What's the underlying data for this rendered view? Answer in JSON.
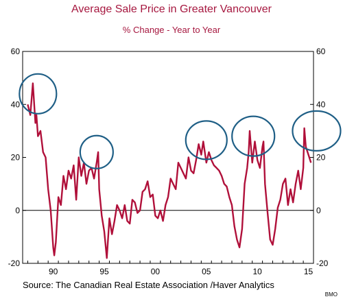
{
  "title": "Average Sale Price in Greater Vancouver",
  "subtitle": "% Change - Year to Year",
  "source": "Source:  The Canadian Real Estate Association /Haver Analytics",
  "brand": "BMO",
  "colors": {
    "series": "#b0103a",
    "text": "#a6173f",
    "circles": "#1f5f86"
  },
  "chart_data": {
    "type": "line",
    "title": "Average Sale Price in Greater Vancouver",
    "subtitle": "% Change - Year to Year",
    "xlabel": "",
    "ylabel": "",
    "xlim": [
      1987.5,
      2016.0
    ],
    "ylim": [
      -20,
      60
    ],
    "y_ticks": [
      -20,
      0,
      20,
      40,
      60
    ],
    "y_tick_labels": [
      "-20",
      "0",
      "20",
      "40",
      "60"
    ],
    "x_ticks": [
      1990,
      1995,
      2000,
      2005,
      2010,
      2015
    ],
    "x_tick_labels": [
      "90",
      "95",
      "00",
      "05",
      "10",
      "15"
    ],
    "zero_line": true,
    "grid": false,
    "legend": "none",
    "series": [
      {
        "x": [
          1988.0,
          1988.25,
          1988.5,
          1988.75,
          1988.85,
          1989.0,
          1989.25,
          1989.5,
          1989.75,
          1990.0,
          1990.25,
          1990.5,
          1990.6,
          1990.75,
          1991.0,
          1991.25,
          1991.5,
          1991.75,
          1992.0,
          1992.25,
          1992.5,
          1992.75,
          1993.0,
          1993.25,
          1993.5,
          1993.75,
          1994.0,
          1994.25,
          1994.5,
          1994.75,
          1994.9,
          1995.0,
          1995.25,
          1995.5,
          1995.75,
          1996.0,
          1996.25,
          1996.5,
          1996.75,
          1997.0,
          1997.25,
          1997.5,
          1997.75,
          1998.0,
          1998.25,
          1998.5,
          1998.75,
          1999.0,
          1999.25,
          1999.5,
          1999.75,
          2000.0,
          2000.25,
          2000.5,
          2000.75,
          2001.0,
          2001.25,
          2001.5,
          2001.75,
          2002.0,
          2002.25,
          2002.5,
          2002.75,
          2003.0,
          2003.25,
          2003.5,
          2003.75,
          2004.0,
          2004.25,
          2004.5,
          2004.75,
          2005.0,
          2005.2,
          2005.5,
          2005.75,
          2006.0,
          2006.25,
          2006.5,
          2006.75,
          2007.0,
          2007.25,
          2007.5,
          2007.75,
          2008.0,
          2008.25,
          2008.5,
          2008.75,
          2009.0,
          2009.25,
          2009.5,
          2009.65,
          2009.75,
          2010.0,
          2010.25,
          2010.5,
          2010.75,
          2011.0,
          2011.1,
          2011.25,
          2011.5,
          2011.75,
          2012.0,
          2012.25,
          2012.5,
          2012.75,
          2013.0,
          2013.25,
          2013.5,
          2013.75,
          2014.0,
          2014.25,
          2014.5,
          2014.75,
          2015.0,
          2015.1,
          2015.25,
          2015.5,
          2015.75
        ],
        "values": [
          40,
          36,
          48,
          33,
          36,
          28,
          30,
          22,
          20,
          8,
          0,
          -14,
          -17,
          -12,
          5,
          2,
          13,
          8,
          15,
          12,
          17,
          4,
          20,
          13,
          18,
          10,
          15,
          16,
          12,
          18,
          22,
          8,
          -2,
          -8,
          -18,
          -3,
          -9,
          -4,
          2,
          0,
          -3,
          2,
          -4,
          -5,
          4,
          3,
          -1,
          0,
          7,
          8,
          11,
          5,
          6,
          -2,
          -3,
          0,
          -4,
          2,
          5,
          12,
          10,
          8,
          18,
          16,
          14,
          12,
          20,
          15,
          14,
          19,
          25,
          21,
          26,
          18,
          22,
          19,
          17,
          16,
          15,
          13,
          10,
          9,
          5,
          2,
          -6,
          -11,
          -14,
          -7,
          10,
          16,
          22,
          30,
          18,
          26,
          19,
          16,
          24,
          26,
          10,
          -1,
          -11,
          -13,
          -7,
          1,
          4,
          10,
          12,
          2,
          8,
          3,
          10,
          15,
          8,
          16,
          31,
          24,
          21,
          18
        ]
      }
    ],
    "annotations": [
      "highlight circles around peaks near 1989, 1994, 2005, 2010, 2016"
    ]
  }
}
